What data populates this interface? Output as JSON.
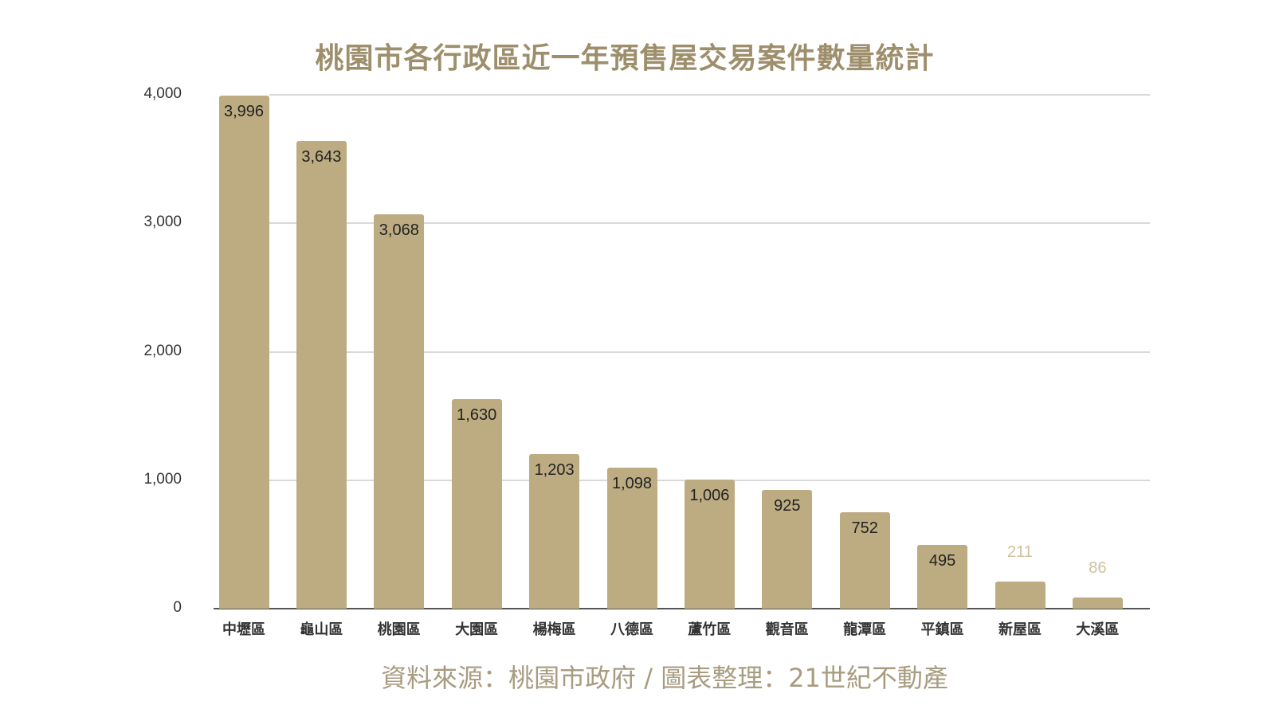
{
  "title": "桃園市各行政區近一年預售屋交易案件數量統計",
  "source": "資料來源：桃園市政府 / 圖表整理：21世紀不動產",
  "colors": {
    "bar": "#bdac82",
    "title": "#9e8f6c",
    "source": "#a89c80",
    "grid": "#d9d9d9"
  },
  "y_ticks": [
    "0",
    "1,000",
    "2,000",
    "3,000",
    "4,000"
  ],
  "bars": [
    {
      "category": "中壢區",
      "value": 3996,
      "label": "3,996"
    },
    {
      "category": "龜山區",
      "value": 3643,
      "label": "3,643"
    },
    {
      "category": "桃園區",
      "value": 3068,
      "label": "3,068"
    },
    {
      "category": "大園區",
      "value": 1630,
      "label": "1,630"
    },
    {
      "category": "楊梅區",
      "value": 1203,
      "label": "1,203"
    },
    {
      "category": "八德區",
      "value": 1098,
      "label": "1,098"
    },
    {
      "category": "蘆竹區",
      "value": 1006,
      "label": "1,006"
    },
    {
      "category": "觀音區",
      "value": 925,
      "label": "925"
    },
    {
      "category": "龍潭區",
      "value": 752,
      "label": "752"
    },
    {
      "category": "平鎮區",
      "value": 495,
      "label": "495"
    },
    {
      "category": "新屋區",
      "value": 211,
      "label": "211"
    },
    {
      "category": "大溪區",
      "value": 86,
      "label": "86"
    }
  ],
  "chart_data": {
    "type": "bar",
    "title": "桃園市各行政區近一年預售屋交易案件數量統計",
    "categories": [
      "中壢區",
      "龜山區",
      "桃園區",
      "大園區",
      "楊梅區",
      "八德區",
      "蘆竹區",
      "觀音區",
      "龍潭區",
      "平鎮區",
      "新屋區",
      "大溪區"
    ],
    "values": [
      3996,
      3643,
      3068,
      1630,
      1203,
      1098,
      1006,
      925,
      752,
      495,
      211,
      86
    ],
    "xlabel": "",
    "ylabel": "",
    "ylim": [
      0,
      4000
    ],
    "y_ticks": [
      0,
      1000,
      2000,
      3000,
      4000
    ],
    "grid": true,
    "legend": "none",
    "data_labels": true,
    "footnote": "資料來源：桃園市政府 / 圖表整理：21世紀不動產"
  }
}
